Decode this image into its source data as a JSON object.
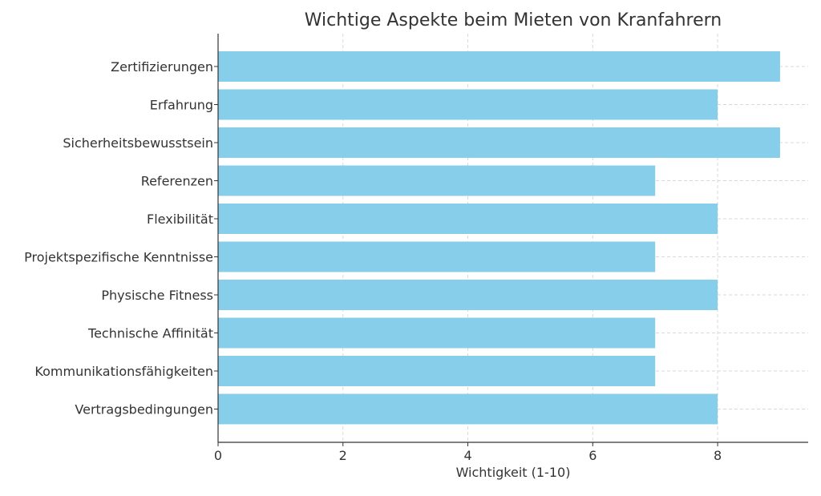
{
  "chart_data": {
    "type": "bar",
    "orientation": "horizontal",
    "title": "Wichtige Aspekte beim Mieten von Kranfahrern",
    "xlabel": "Wichtigkeit (1-10)",
    "ylabel": "",
    "categories": [
      "Zertifizierungen",
      "Erfahrung",
      "Sicherheitsbewusstsein",
      "Referenzen",
      "Flexibilität",
      "Projektspezifische Kenntnisse",
      "Physische Fitness",
      "Technische Affinität",
      "Kommunikationsfähigkeiten",
      "Vertragsbedingungen"
    ],
    "values": [
      9,
      8,
      9,
      7,
      8,
      7,
      8,
      7,
      7,
      8
    ],
    "xlim": [
      0,
      9.45
    ],
    "xticks": [
      "0",
      "2",
      "4",
      "6",
      "8"
    ],
    "grid": true,
    "bar_color": "#87CEEB",
    "grid_color": "#d9d9d9",
    "axis_color": "#333333"
  }
}
